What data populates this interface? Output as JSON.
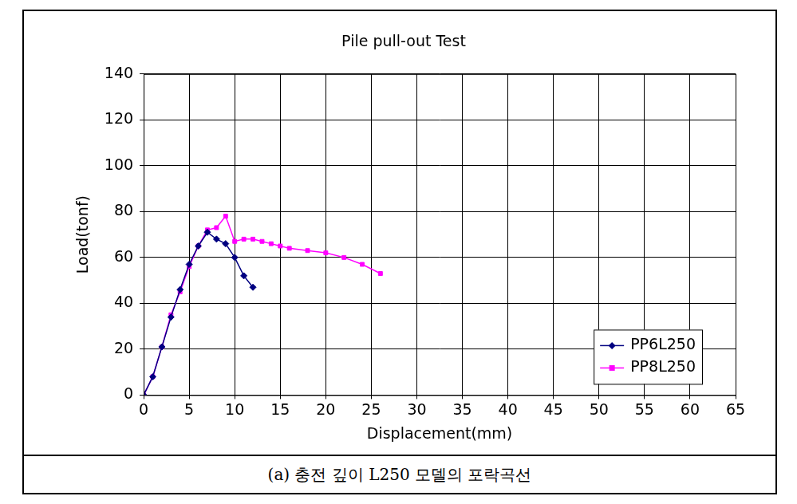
{
  "chart_data": {
    "type": "line",
    "title": "Pile pull-out Test",
    "x_label": "Displacement(mm)",
    "y_label": "Load(tonf)",
    "caption": "(a) 충전 깊이 L250 모델의 포락곡선",
    "series": [
      {
        "name": "PP6L250",
        "color": "#000080",
        "marker": "diamond",
        "x": [
          0,
          1,
          2,
          3,
          4,
          5,
          6,
          7,
          8,
          9,
          10,
          11,
          12
        ],
        "values": [
          0,
          8,
          21,
          34,
          46,
          57,
          65,
          71,
          68,
          66,
          60,
          52,
          47
        ]
      },
      {
        "name": "PP8L250",
        "color": "#ff00ff",
        "marker": "square",
        "x": [
          0,
          1,
          2,
          3,
          4,
          5,
          6,
          7,
          8,
          9,
          10,
          11,
          12,
          13,
          14,
          15,
          16,
          18,
          20,
          22,
          24,
          26
        ],
        "values": [
          0,
          8,
          21,
          35,
          45,
          56,
          65,
          72,
          73,
          78,
          67,
          68,
          68,
          67,
          66,
          65,
          64,
          63,
          62,
          60,
          57,
          53
        ]
      }
    ],
    "xlim": [
      0,
      65
    ],
    "xticks": [
      0,
      5,
      10,
      15,
      20,
      25,
      30,
      35,
      40,
      45,
      50,
      55,
      60,
      65
    ],
    "ylim": [
      0,
      140
    ],
    "yticks": [
      0,
      20,
      40,
      60,
      80,
      100,
      120,
      140
    ],
    "grid": true,
    "legend": "lower right"
  }
}
